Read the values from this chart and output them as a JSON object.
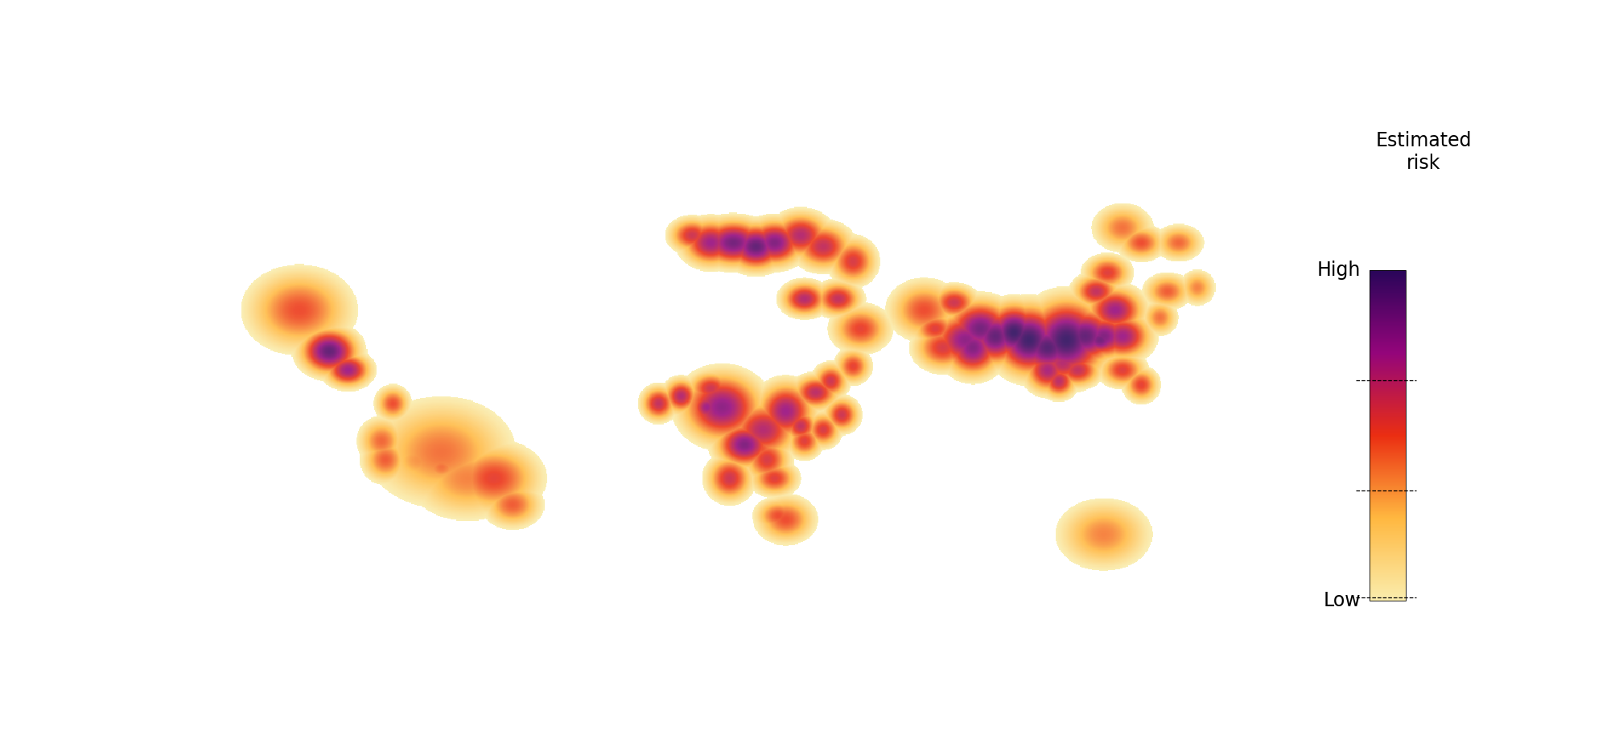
{
  "background_color": "#ffffff",
  "ocean_color": "#ffffff",
  "land_color": "#f5e6a3",
  "border_color": "#2a1a00",
  "colorbar_title_line1": "Estimated",
  "colorbar_title_line2": "risk",
  "colorbar_high": "High",
  "colorbar_low": "Low",
  "lon_min": -180,
  "lon_max": 180,
  "lat_min": -60,
  "lat_max": 85,
  "risk_hotspots": [
    {
      "lon": -100,
      "lat": 30,
      "intensity": 0.55,
      "sigma_lon": 9,
      "sigma_lat": 7
    },
    {
      "lon": -92,
      "lat": 19,
      "intensity": 0.92,
      "sigma_lon": 5,
      "sigma_lat": 4
    },
    {
      "lon": -87,
      "lat": 14,
      "intensity": 0.78,
      "sigma_lon": 4,
      "sigma_lat": 3
    },
    {
      "lon": -75,
      "lat": 5,
      "intensity": 0.55,
      "sigma_lon": 3,
      "sigma_lat": 3
    },
    {
      "lon": -62,
      "lat": -8,
      "intensity": 0.48,
      "sigma_lon": 12,
      "sigma_lat": 9
    },
    {
      "lon": -48,
      "lat": -15,
      "intensity": 0.58,
      "sigma_lon": 8,
      "sigma_lat": 6
    },
    {
      "lon": -43,
      "lat": -22,
      "intensity": 0.52,
      "sigma_lon": 5,
      "sigma_lat": 4
    },
    {
      "lon": -55,
      "lat": -15,
      "intensity": 0.45,
      "sigma_lon": 10,
      "sigma_lat": 7
    },
    {
      "lon": -68,
      "lat": -10,
      "intensity": 0.42,
      "sigma_lon": 6,
      "sigma_lat": 5
    },
    {
      "lon": -78,
      "lat": -5,
      "intensity": 0.5,
      "sigma_lon": 4,
      "sigma_lat": 4
    },
    {
      "lon": 13,
      "lat": 4,
      "intensity": 0.82,
      "sigma_lon": 7,
      "sigma_lat": 6
    },
    {
      "lon": 24,
      "lat": -2,
      "intensity": 0.72,
      "sigma_lon": 6,
      "sigma_lat": 5
    },
    {
      "lon": 30,
      "lat": 3,
      "intensity": 0.78,
      "sigma_lon": 5,
      "sigma_lat": 5
    },
    {
      "lon": 19,
      "lat": -6,
      "intensity": 0.85,
      "sigma_lon": 5,
      "sigma_lat": 4
    },
    {
      "lon": 10,
      "lat": 9,
      "intensity": 0.65,
      "sigma_lon": 4,
      "sigma_lat": 3
    },
    {
      "lon": 14,
      "lat": 5,
      "intensity": 0.75,
      "sigma_lon": 3,
      "sigma_lat": 3
    },
    {
      "lon": 38,
      "lat": 8,
      "intensity": 0.7,
      "sigma_lon": 4,
      "sigma_lat": 3
    },
    {
      "lon": 15,
      "lat": -15,
      "intensity": 0.65,
      "sigma_lon": 4,
      "sigma_lat": 4
    },
    {
      "lon": 28,
      "lat": -25,
      "intensity": 0.55,
      "sigma_lon": 4,
      "sigma_lat": 3
    },
    {
      "lon": 9,
      "lat": 4,
      "intensity": 0.78,
      "sigma_lon": 3,
      "sigma_lat": 3
    },
    {
      "lon": 2,
      "lat": 7,
      "intensity": 0.72,
      "sigma_lon": 3,
      "sigma_lat": 3
    },
    {
      "lon": -4,
      "lat": 5,
      "intensity": 0.68,
      "sigma_lon": 3,
      "sigma_lat": 3
    },
    {
      "lon": 25,
      "lat": -10,
      "intensity": 0.62,
      "sigma_lon": 4,
      "sigma_lat": 4
    },
    {
      "lon": 35,
      "lat": -5,
      "intensity": 0.6,
      "sigma_lon": 3,
      "sigma_lat": 3
    },
    {
      "lon": 42,
      "lat": 11,
      "intensity": 0.65,
      "sigma_lon": 3,
      "sigma_lat": 3
    },
    {
      "lon": 48,
      "lat": 15,
      "intensity": 0.58,
      "sigma_lon": 3,
      "sigma_lat": 3
    },
    {
      "lon": 16,
      "lat": 48,
      "intensity": 0.88,
      "sigma_lon": 6,
      "sigma_lat": 4
    },
    {
      "lon": 22,
      "lat": 47,
      "intensity": 0.92,
      "sigma_lon": 5,
      "sigma_lat": 4
    },
    {
      "lon": 27,
      "lat": 48,
      "intensity": 0.85,
      "sigma_lon": 5,
      "sigma_lat": 4
    },
    {
      "lon": 10,
      "lat": 48,
      "intensity": 0.78,
      "sigma_lon": 5,
      "sigma_lat": 4
    },
    {
      "lon": 5,
      "lat": 50,
      "intensity": 0.65,
      "sigma_lon": 4,
      "sigma_lat": 3
    },
    {
      "lon": 34,
      "lat": 50,
      "intensity": 0.72,
      "sigma_lon": 5,
      "sigma_lat": 4
    },
    {
      "lon": 40,
      "lat": 47,
      "intensity": 0.68,
      "sigma_lon": 5,
      "sigma_lat": 4
    },
    {
      "lon": 48,
      "lat": 43,
      "intensity": 0.62,
      "sigma_lon": 4,
      "sigma_lat": 4
    },
    {
      "lon": 35,
      "lat": 33,
      "intensity": 0.72,
      "sigma_lon": 4,
      "sigma_lat": 3
    },
    {
      "lon": 44,
      "lat": 33,
      "intensity": 0.68,
      "sigma_lon": 4,
      "sigma_lat": 3
    },
    {
      "lon": 50,
      "lat": 25,
      "intensity": 0.58,
      "sigma_lon": 5,
      "sigma_lat": 4
    },
    {
      "lon": 67,
      "lat": 30,
      "intensity": 0.55,
      "sigma_lon": 6,
      "sigma_lat": 5
    },
    {
      "lon": 72,
      "lat": 20,
      "intensity": 0.62,
      "sigma_lon": 5,
      "sigma_lat": 4
    },
    {
      "lon": 78,
      "lat": 22,
      "intensity": 0.82,
      "sigma_lon": 6,
      "sigma_lat": 5
    },
    {
      "lon": 82,
      "lat": 25,
      "intensity": 0.88,
      "sigma_lon": 6,
      "sigma_lat": 5
    },
    {
      "lon": 86,
      "lat": 23,
      "intensity": 0.92,
      "sigma_lon": 5,
      "sigma_lat": 5
    },
    {
      "lon": 80,
      "lat": 20,
      "intensity": 0.85,
      "sigma_lon": 5,
      "sigma_lat": 5
    },
    {
      "lon": 91,
      "lat": 24,
      "intensity": 1.0,
      "sigma_lon": 5,
      "sigma_lat": 5
    },
    {
      "lon": 95,
      "lat": 22,
      "intensity": 1.0,
      "sigma_lon": 6,
      "sigma_lat": 6
    },
    {
      "lon": 100,
      "lat": 20,
      "intensity": 0.95,
      "sigma_lon": 6,
      "sigma_lat": 5
    },
    {
      "lon": 105,
      "lat": 22,
      "intensity": 1.0,
      "sigma_lon": 7,
      "sigma_lat": 7
    },
    {
      "lon": 110,
      "lat": 23,
      "intensity": 0.92,
      "sigma_lon": 6,
      "sigma_lat": 5
    },
    {
      "lon": 115,
      "lat": 23,
      "intensity": 0.85,
      "sigma_lon": 5,
      "sigma_lat": 4
    },
    {
      "lon": 120,
      "lat": 23,
      "intensity": 0.78,
      "sigma_lon": 5,
      "sigma_lat": 4
    },
    {
      "lon": 104,
      "lat": 16,
      "intensity": 0.72,
      "sigma_lon": 5,
      "sigma_lat": 4
    },
    {
      "lon": 108,
      "lat": 14,
      "intensity": 0.68,
      "sigma_lon": 4,
      "sigma_lat": 3
    },
    {
      "lon": 100,
      "lat": 14,
      "intensity": 0.75,
      "sigma_lon": 4,
      "sigma_lat": 4
    },
    {
      "lon": 103,
      "lat": 11,
      "intensity": 0.7,
      "sigma_lon": 3,
      "sigma_lat": 3
    },
    {
      "lon": 120,
      "lat": 14,
      "intensity": 0.6,
      "sigma_lon": 4,
      "sigma_lat": 3
    },
    {
      "lon": 125,
      "lat": 10,
      "intensity": 0.58,
      "sigma_lon": 3,
      "sigma_lat": 3
    },
    {
      "lon": 114,
      "lat": 22,
      "intensity": 0.88,
      "sigma_lon": 4,
      "sigma_lat": 3
    },
    {
      "lon": 118,
      "lat": 30,
      "intensity": 0.78,
      "sigma_lon": 5,
      "sigma_lat": 4
    },
    {
      "lon": 113,
      "lat": 35,
      "intensity": 0.68,
      "sigma_lon": 4,
      "sigma_lat": 3
    },
    {
      "lon": 132,
      "lat": 35,
      "intensity": 0.52,
      "sigma_lon": 4,
      "sigma_lat": 3
    },
    {
      "lon": 140,
      "lat": 36,
      "intensity": 0.45,
      "sigma_lon": 3,
      "sigma_lat": 3
    },
    {
      "lon": 130,
      "lat": 28,
      "intensity": 0.48,
      "sigma_lon": 3,
      "sigma_lat": 3
    },
    {
      "lon": 75,
      "lat": 32,
      "intensity": 0.65,
      "sigma_lon": 4,
      "sigma_lat": 3
    },
    {
      "lon": 70,
      "lat": 25,
      "intensity": 0.6,
      "sigma_lon": 4,
      "sigma_lat": 3
    },
    {
      "lon": 116,
      "lat": 40,
      "intensity": 0.6,
      "sigma_lon": 4,
      "sigma_lat": 3
    },
    {
      "lon": 125,
      "lat": 48,
      "intensity": 0.55,
      "sigma_lon": 4,
      "sigma_lat": 3
    },
    {
      "lon": 135,
      "lat": 48,
      "intensity": 0.5,
      "sigma_lon": 4,
      "sigma_lat": 3
    },
    {
      "lon": 120,
      "lat": 52,
      "intensity": 0.48,
      "sigma_lon": 5,
      "sigma_lat": 4
    },
    {
      "lon": -77,
      "lat": -10,
      "intensity": 0.52,
      "sigma_lon": 4,
      "sigma_lat": 4
    },
    {
      "lon": -62,
      "lat": -12,
      "intensity": 0.48,
      "sigma_lon": 4,
      "sigma_lat": 3
    },
    {
      "lon": 115,
      "lat": -30,
      "intensity": 0.45,
      "sigma_lon": 8,
      "sigma_lat": 6
    },
    {
      "lon": 30,
      "lat": -26,
      "intensity": 0.55,
      "sigma_lon": 5,
      "sigma_lat": 4
    },
    {
      "lon": 27,
      "lat": -15,
      "intensity": 0.6,
      "sigma_lon": 4,
      "sigma_lat": 3
    },
    {
      "lon": 23,
      "lat": -7,
      "intensity": 0.55,
      "sigma_lon": 4,
      "sigma_lat": 3
    },
    {
      "lon": 45,
      "lat": 2,
      "intensity": 0.65,
      "sigma_lon": 3,
      "sigma_lat": 3
    },
    {
      "lon": 40,
      "lat": -2,
      "intensity": 0.62,
      "sigma_lon": 3,
      "sigma_lat": 3
    },
    {
      "lon": 34,
      "lat": -1,
      "intensity": 0.68,
      "sigma_lon": 3,
      "sigma_lat": 3
    }
  ]
}
